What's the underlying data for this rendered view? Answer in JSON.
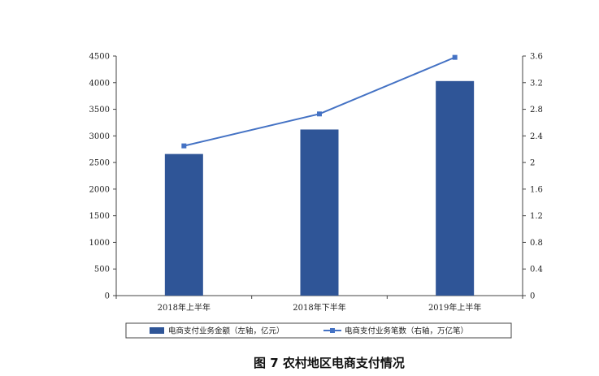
{
  "caption": "图 7 农村地区电商支付情况",
  "colors": {
    "bar": "#2F5597",
    "line": "#4472C4"
  },
  "chart_data": {
    "type": "bar",
    "categories": [
      "2018年上半年",
      "2018年下半年",
      "2019年上半年"
    ],
    "series": [
      {
        "name": "电商支付业务金额（左轴，亿元）",
        "type": "bar",
        "axis": "left",
        "values": [
          2660,
          3120,
          4030
        ]
      },
      {
        "name": "电商支付业务笔数（右轴，万亿笔）",
        "type": "line",
        "axis": "right",
        "values": [
          2.25,
          2.73,
          3.58
        ]
      }
    ],
    "yleft": {
      "min": 0,
      "max": 4500,
      "ticks": [
        "0",
        "500",
        "1000",
        "1500",
        "2000",
        "2500",
        "3000",
        "3500",
        "4000",
        "4500"
      ]
    },
    "yright": {
      "min": 0,
      "max": 3.6,
      "ticks": [
        "0",
        "0.4",
        "0.8",
        "1.2",
        "1.6",
        "2",
        "2.4",
        "2.8",
        "3.2",
        "3.6"
      ]
    },
    "legend_position": "bottom",
    "grid": false
  }
}
